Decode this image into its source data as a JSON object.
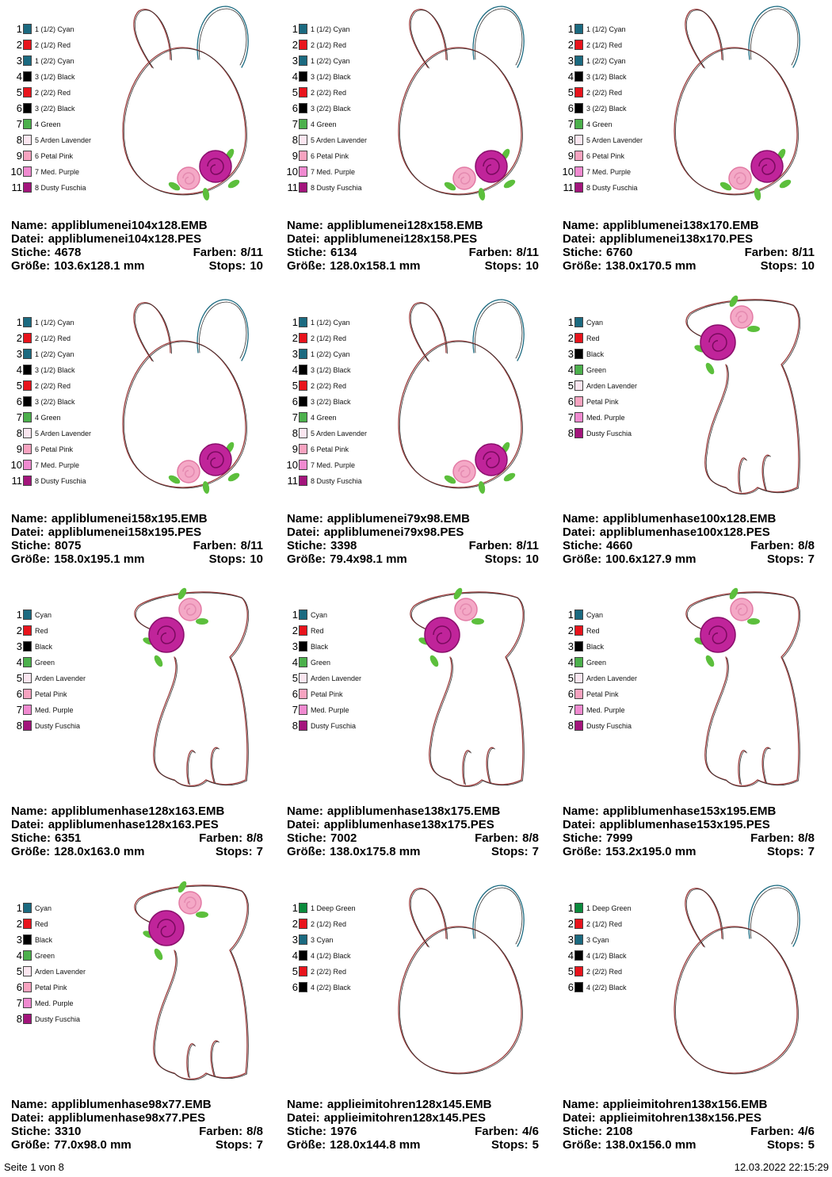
{
  "labels": {
    "name": "Name:",
    "datei": "Datei:",
    "stiche": "Stiche:",
    "farben": "Farben:",
    "groesse": "Größe:",
    "stops": "Stops:"
  },
  "cells": [
    {
      "colors": [
        {
          "n": "1",
          "label": "1 (1/2) Cyan",
          "color": "#1b6a80"
        },
        {
          "n": "2",
          "label": "2 (1/2) Red",
          "color": "#e8141c"
        },
        {
          "n": "3",
          "label": "1 (2/2) Cyan",
          "color": "#1b6a80"
        },
        {
          "n": "4",
          "label": "3 (1/2) Black",
          "color": "#000000"
        },
        {
          "n": "5",
          "label": "2 (2/2) Red",
          "color": "#e8141c"
        },
        {
          "n": "6",
          "label": "3 (2/2) Black",
          "color": "#000000"
        },
        {
          "n": "7",
          "label": "4 Green",
          "color": "#4cb04c"
        },
        {
          "n": "8",
          "label": "5 Arden Lavender",
          "color": "#fbe6f0"
        },
        {
          "n": "9",
          "label": "6 Petal Pink",
          "color": "#f7a3c0"
        },
        {
          "n": "10",
          "label": "7 Med. Purple",
          "color": "#f08ad0"
        },
        {
          "n": "11",
          "label": "8 Dusty Fuschia",
          "color": "#a3157c"
        }
      ],
      "name": "appliblumenei104x128.EMB",
      "datei": "appliblumenei104x128.PES",
      "stiche": "4678",
      "farben": "8/11",
      "groesse": "103.6x128.1 mm",
      "stops": "10"
    },
    {
      "colors": [
        {
          "n": "1",
          "label": "1 (1/2) Cyan",
          "color": "#1b6a80"
        },
        {
          "n": "2",
          "label": "2 (1/2) Red",
          "color": "#e8141c"
        },
        {
          "n": "3",
          "label": "1 (2/2) Cyan",
          "color": "#1b6a80"
        },
        {
          "n": "4",
          "label": "3 (1/2) Black",
          "color": "#000000"
        },
        {
          "n": "5",
          "label": "2 (2/2) Red",
          "color": "#e8141c"
        },
        {
          "n": "6",
          "label": "3 (2/2) Black",
          "color": "#000000"
        },
        {
          "n": "7",
          "label": "4 Green",
          "color": "#4cb04c"
        },
        {
          "n": "8",
          "label": "5 Arden Lavender",
          "color": "#fbe6f0"
        },
        {
          "n": "9",
          "label": "6 Petal Pink",
          "color": "#f7a3c0"
        },
        {
          "n": "10",
          "label": "7 Med. Purple",
          "color": "#f08ad0"
        },
        {
          "n": "11",
          "label": "8 Dusty Fuschia",
          "color": "#a3157c"
        }
      ],
      "name": "appliblumenei128x158.EMB",
      "datei": "appliblumenei128x158.PES",
      "stiche": "6134",
      "farben": "8/11",
      "groesse": "128.0x158.1 mm",
      "stops": "10"
    },
    {
      "colors": [
        {
          "n": "1",
          "label": "1 (1/2) Cyan",
          "color": "#1b6a80"
        },
        {
          "n": "2",
          "label": "2 (1/2) Red",
          "color": "#e8141c"
        },
        {
          "n": "3",
          "label": "1 (2/2) Cyan",
          "color": "#1b6a80"
        },
        {
          "n": "4",
          "label": "3 (1/2) Black",
          "color": "#000000"
        },
        {
          "n": "5",
          "label": "2 (2/2) Red",
          "color": "#e8141c"
        },
        {
          "n": "6",
          "label": "3 (2/2) Black",
          "color": "#000000"
        },
        {
          "n": "7",
          "label": "4 Green",
          "color": "#4cb04c"
        },
        {
          "n": "8",
          "label": "5 Arden Lavender",
          "color": "#fbe6f0"
        },
        {
          "n": "9",
          "label": "6 Petal Pink",
          "color": "#f7a3c0"
        },
        {
          "n": "10",
          "label": "7 Med. Purple",
          "color": "#f08ad0"
        },
        {
          "n": "11",
          "label": "8 Dusty Fuschia",
          "color": "#a3157c"
        }
      ],
      "name": "appliblumenei138x170.EMB",
      "datei": "appliblumenei138x170.PES",
      "stiche": "6760",
      "farben": "8/11",
      "groesse": "138.0x170.5 mm",
      "stops": "10"
    },
    {
      "colors": [
        {
          "n": "1",
          "label": "1 (1/2) Cyan",
          "color": "#1b6a80"
        },
        {
          "n": "2",
          "label": "2 (1/2) Red",
          "color": "#e8141c"
        },
        {
          "n": "3",
          "label": "1 (2/2) Cyan",
          "color": "#1b6a80"
        },
        {
          "n": "4",
          "label": "3 (1/2) Black",
          "color": "#000000"
        },
        {
          "n": "5",
          "label": "2 (2/2) Red",
          "color": "#e8141c"
        },
        {
          "n": "6",
          "label": "3 (2/2) Black",
          "color": "#000000"
        },
        {
          "n": "7",
          "label": "4 Green",
          "color": "#4cb04c"
        },
        {
          "n": "8",
          "label": "5 Arden Lavender",
          "color": "#fbe6f0"
        },
        {
          "n": "9",
          "label": "6 Petal Pink",
          "color": "#f7a3c0"
        },
        {
          "n": "10",
          "label": "7 Med. Purple",
          "color": "#f08ad0"
        },
        {
          "n": "11",
          "label": "8 Dusty Fuschia",
          "color": "#a3157c"
        }
      ],
      "name": "appliblumenei158x195.EMB",
      "datei": "appliblumenei158x195.PES",
      "stiche": "8075",
      "farben": "8/11",
      "groesse": "158.0x195.1 mm",
      "stops": "10"
    },
    {
      "colors": [
        {
          "n": "1",
          "label": "1 (1/2) Cyan",
          "color": "#1b6a80"
        },
        {
          "n": "2",
          "label": "2 (1/2) Red",
          "color": "#e8141c"
        },
        {
          "n": "3",
          "label": "1 (2/2) Cyan",
          "color": "#1b6a80"
        },
        {
          "n": "4",
          "label": "3 (1/2) Black",
          "color": "#000000"
        },
        {
          "n": "5",
          "label": "2 (2/2) Red",
          "color": "#e8141c"
        },
        {
          "n": "6",
          "label": "3 (2/2) Black",
          "color": "#000000"
        },
        {
          "n": "7",
          "label": "4 Green",
          "color": "#4cb04c"
        },
        {
          "n": "8",
          "label": "5 Arden Lavender",
          "color": "#fbe6f0"
        },
        {
          "n": "9",
          "label": "6 Petal Pink",
          "color": "#f7a3c0"
        },
        {
          "n": "10",
          "label": "7 Med. Purple",
          "color": "#f08ad0"
        },
        {
          "n": "11",
          "label": "8 Dusty Fuschia",
          "color": "#a3157c"
        }
      ],
      "name": "appliblumenei79x98.EMB",
      "datei": "appliblumenei79x98.PES",
      "stiche": "3398",
      "farben": "8/11",
      "groesse": "79.4x98.1 mm",
      "stops": "10"
    },
    {
      "colors": [
        {
          "n": "1",
          "label": "Cyan",
          "color": "#1b6a80"
        },
        {
          "n": "2",
          "label": "Red",
          "color": "#e8141c"
        },
        {
          "n": "3",
          "label": "Black",
          "color": "#000000"
        },
        {
          "n": "4",
          "label": "Green",
          "color": "#4cb04c"
        },
        {
          "n": "5",
          "label": "Arden Lavender",
          "color": "#fbe6f0"
        },
        {
          "n": "6",
          "label": "Petal Pink",
          "color": "#f7a3c0"
        },
        {
          "n": "7",
          "label": "Med. Purple",
          "color": "#f08ad0"
        },
        {
          "n": "8",
          "label": "Dusty Fuschia",
          "color": "#a3157c"
        }
      ],
      "name": "appliblumenhase100x128.EMB",
      "datei": "appliblumenhase100x128.PES",
      "stiche": "4660",
      "farben": "8/8",
      "groesse": "100.6x127.9 mm",
      "stops": "7"
    },
    {
      "colors": [
        {
          "n": "1",
          "label": "Cyan",
          "color": "#1b6a80"
        },
        {
          "n": "2",
          "label": "Red",
          "color": "#e8141c"
        },
        {
          "n": "3",
          "label": "Black",
          "color": "#000000"
        },
        {
          "n": "4",
          "label": "Green",
          "color": "#4cb04c"
        },
        {
          "n": "5",
          "label": "Arden Lavender",
          "color": "#fbe6f0"
        },
        {
          "n": "6",
          "label": "Petal Pink",
          "color": "#f7a3c0"
        },
        {
          "n": "7",
          "label": "Med. Purple",
          "color": "#f08ad0"
        },
        {
          "n": "8",
          "label": "Dusty Fuschia",
          "color": "#a3157c"
        }
      ],
      "name": "appliblumenhase128x163.EMB",
      "datei": "appliblumenhase128x163.PES",
      "stiche": "6351",
      "farben": "8/8",
      "groesse": "128.0x163.0 mm",
      "stops": "7"
    },
    {
      "colors": [
        {
          "n": "1",
          "label": "Cyan",
          "color": "#1b6a80"
        },
        {
          "n": "2",
          "label": "Red",
          "color": "#e8141c"
        },
        {
          "n": "3",
          "label": "Black",
          "color": "#000000"
        },
        {
          "n": "4",
          "label": "Green",
          "color": "#4cb04c"
        },
        {
          "n": "5",
          "label": "Arden Lavender",
          "color": "#fbe6f0"
        },
        {
          "n": "6",
          "label": "Petal Pink",
          "color": "#f7a3c0"
        },
        {
          "n": "7",
          "label": "Med. Purple",
          "color": "#f08ad0"
        },
        {
          "n": "8",
          "label": "Dusty Fuschia",
          "color": "#a3157c"
        }
      ],
      "name": "appliblumenhase138x175.EMB",
      "datei": "appliblumenhase138x175.PES",
      "stiche": "7002",
      "farben": "8/8",
      "groesse": "138.0x175.8 mm",
      "stops": "7"
    },
    {
      "colors": [
        {
          "n": "1",
          "label": "Cyan",
          "color": "#1b6a80"
        },
        {
          "n": "2",
          "label": "Red",
          "color": "#e8141c"
        },
        {
          "n": "3",
          "label": "Black",
          "color": "#000000"
        },
        {
          "n": "4",
          "label": "Green",
          "color": "#4cb04c"
        },
        {
          "n": "5",
          "label": "Arden Lavender",
          "color": "#fbe6f0"
        },
        {
          "n": "6",
          "label": "Petal Pink",
          "color": "#f7a3c0"
        },
        {
          "n": "7",
          "label": "Med. Purple",
          "color": "#f08ad0"
        },
        {
          "n": "8",
          "label": "Dusty Fuschia",
          "color": "#a3157c"
        }
      ],
      "name": "appliblumenhase153x195.EMB",
      "datei": "appliblumenhase153x195.PES",
      "stiche": "7999",
      "farben": "8/8",
      "groesse": "153.2x195.0 mm",
      "stops": "7"
    },
    {
      "colors": [
        {
          "n": "1",
          "label": "Cyan",
          "color": "#1b6a80"
        },
        {
          "n": "2",
          "label": "Red",
          "color": "#e8141c"
        },
        {
          "n": "3",
          "label": "Black",
          "color": "#000000"
        },
        {
          "n": "4",
          "label": "Green",
          "color": "#4cb04c"
        },
        {
          "n": "5",
          "label": "Arden Lavender",
          "color": "#fbe6f0"
        },
        {
          "n": "6",
          "label": "Petal Pink",
          "color": "#f7a3c0"
        },
        {
          "n": "7",
          "label": "Med. Purple",
          "color": "#f08ad0"
        },
        {
          "n": "8",
          "label": "Dusty Fuschia",
          "color": "#a3157c"
        }
      ],
      "name": "appliblumenhase98x77.EMB",
      "datei": "appliblumenhase98x77.PES",
      "stiche": "3310",
      "farben": "8/8",
      "groesse": "77.0x98.0 mm",
      "stops": "7"
    },
    {
      "colors": [
        {
          "n": "1",
          "label": "1 Deep Green",
          "color": "#0b8a3c"
        },
        {
          "n": "2",
          "label": "2 (1/2) Red",
          "color": "#e8141c"
        },
        {
          "n": "3",
          "label": "3 Cyan",
          "color": "#1b6a80"
        },
        {
          "n": "4",
          "label": "4 (1/2) Black",
          "color": "#000000"
        },
        {
          "n": "5",
          "label": "2 (2/2) Red",
          "color": "#e8141c"
        },
        {
          "n": "6",
          "label": "4 (2/2) Black",
          "color": "#000000"
        }
      ],
      "name": "applieimitohren128x145.EMB",
      "datei": "applieimitohren128x145.PES",
      "stiche": "1976",
      "farben": "4/6",
      "groesse": "128.0x144.8 mm",
      "stops": "5"
    },
    {
      "colors": [
        {
          "n": "1",
          "label": "1 Deep Green",
          "color": "#0b8a3c"
        },
        {
          "n": "2",
          "label": "2 (1/2) Red",
          "color": "#e8141c"
        },
        {
          "n": "3",
          "label": "3 Cyan",
          "color": "#1b6a80"
        },
        {
          "n": "4",
          "label": "4 (1/2) Black",
          "color": "#000000"
        },
        {
          "n": "5",
          "label": "2 (2/2) Red",
          "color": "#e8141c"
        },
        {
          "n": "6",
          "label": "4 (2/2) Black",
          "color": "#000000"
        }
      ],
      "name": "applieimitohren138x156.EMB",
      "datei": "applieimitohren138x156.PES",
      "stiche": "2108",
      "farben": "4/6",
      "groesse": "138.0x156.0 mm",
      "stops": "5"
    }
  ],
  "footer": {
    "page": "Seite 1 von 8",
    "date": "12.03.2022 22:15:29"
  }
}
